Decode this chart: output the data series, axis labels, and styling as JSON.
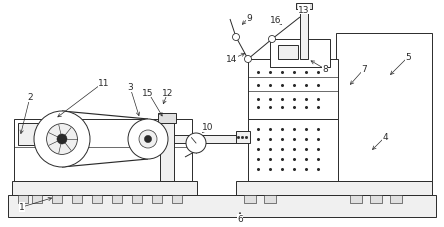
{
  "bg_color": "#ffffff",
  "line_color": "#2a2a2a",
  "lw": 0.7,
  "fig_width": 4.44,
  "fig_height": 2.28,
  "dpi": 100
}
